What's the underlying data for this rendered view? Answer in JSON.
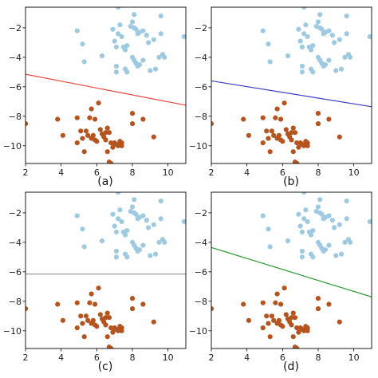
{
  "colors": {
    "cluster_top": "#9ecae1",
    "cluster_bottom": "#b5541e",
    "axis": "#000000"
  },
  "chart_data": [
    {
      "type": "scatter",
      "panel_label": "(a)",
      "xlim": [
        2,
        11
      ],
      "ylim": [
        -11.2,
        -0.6
      ],
      "xticks": [
        2,
        4,
        6,
        8,
        10
      ],
      "yticks": [
        -10,
        -8,
        -6,
        -4,
        -2
      ],
      "xtick_labels": [
        "2",
        "4",
        "6",
        "8",
        "10"
      ],
      "ytick_labels": [
        "−10",
        "−8",
        "−6",
        "−4",
        "−2"
      ],
      "boundary": {
        "x": [
          2,
          11
        ],
        "y": [
          -5.15,
          -7.25
        ],
        "color": "#e8473f"
      },
      "clusters": [
        "top",
        "bottom"
      ]
    },
    {
      "type": "scatter",
      "panel_label": "(b)",
      "xlim": [
        2,
        11
      ],
      "ylim": [
        -11.2,
        -0.6
      ],
      "xticks": [
        2,
        4,
        6,
        8,
        10
      ],
      "yticks": [
        -10,
        -8,
        -6,
        -4,
        -2
      ],
      "xtick_labels": [
        "2",
        "4",
        "6",
        "8",
        "10"
      ],
      "ytick_labels": [
        "−10",
        "−8",
        "−6",
        "−4",
        "−2"
      ],
      "boundary": {
        "x": [
          2,
          11
        ],
        "y": [
          -5.6,
          -7.35
        ],
        "color": "#3a3fc8"
      },
      "clusters": [
        "top",
        "bottom"
      ]
    },
    {
      "type": "scatter",
      "panel_label": "(c)",
      "xlim": [
        2,
        11
      ],
      "ylim": [
        -11.2,
        -0.6
      ],
      "xticks": [
        2,
        4,
        6,
        8,
        10
      ],
      "yticks": [
        -10,
        -8,
        -6,
        -4,
        -2
      ],
      "xtick_labels": [
        "2",
        "4",
        "6",
        "8",
        "10"
      ],
      "ytick_labels": [
        "−10",
        "−8",
        "−6",
        "−4",
        "−2"
      ],
      "boundary": {
        "x": [
          2,
          11
        ],
        "y": [
          -6.15,
          -6.15
        ],
        "color": "#9a9a9a"
      },
      "clusters": [
        "top",
        "bottom"
      ]
    },
    {
      "type": "scatter",
      "panel_label": "(d)",
      "xlim": [
        2,
        11
      ],
      "ylim": [
        -11.2,
        -0.6
      ],
      "xticks": [
        2,
        4,
        6,
        8,
        10
      ],
      "yticks": [
        -10,
        -8,
        -6,
        -4,
        -2
      ],
      "xtick_labels": [
        "2",
        "4",
        "6",
        "8",
        "10"
      ],
      "ytick_labels": [
        "−10",
        "−8",
        "−6",
        "−4",
        "−2"
      ],
      "boundary": {
        "x": [
          2,
          11
        ],
        "y": [
          -4.35,
          -7.7
        ],
        "color": "#2e9a2e"
      },
      "clusters": [
        "top",
        "bottom"
      ]
    }
  ],
  "clusters": {
    "top": [
      [
        4.9,
        -2.2
      ],
      [
        5.2,
        -3.1
      ],
      [
        5.3,
        -4.3
      ],
      [
        6.3,
        -3.9
      ],
      [
        6.9,
        -2.1
      ],
      [
        7.2,
        -0.6
      ],
      [
        7.3,
        -1.8
      ],
      [
        7.0,
        -2.9
      ],
      [
        7.1,
        -3.3
      ],
      [
        7.2,
        -2.4
      ],
      [
        7.4,
        -2.6
      ],
      [
        7.5,
        -3.3
      ],
      [
        7.6,
        -3.5
      ],
      [
        7.7,
        -3.2
      ],
      [
        7.9,
        -1.9
      ],
      [
        8.1,
        -2.0
      ],
      [
        8.2,
        -2.1
      ],
      [
        8.3,
        -2.4
      ],
      [
        8.4,
        -2.3
      ],
      [
        8.6,
        -2.2
      ],
      [
        8.8,
        -2.5
      ],
      [
        9.2,
        -2.8
      ],
      [
        8.9,
        -3.0
      ],
      [
        8.0,
        -4.0
      ],
      [
        8.1,
        -4.2
      ],
      [
        8.2,
        -4.4
      ],
      [
        8.3,
        -4.6
      ],
      [
        8.4,
        -4.5
      ],
      [
        8.6,
        -4.2
      ],
      [
        9.0,
        -4.9
      ],
      [
        9.3,
        -4.8
      ],
      [
        9.5,
        -4.0
      ],
      [
        9.7,
        -3.8
      ],
      [
        9.8,
        -4.0
      ],
      [
        9.6,
        -2.4
      ],
      [
        9.6,
        -1.2
      ],
      [
        8.1,
        -1.1
      ],
      [
        7.1,
        -4.6
      ],
      [
        7.1,
        -5.0
      ],
      [
        7.6,
        -4.8
      ],
      [
        7.7,
        -5.0
      ],
      [
        10.9,
        -2.6
      ],
      [
        8.0,
        -1.6
      ]
    ],
    "bottom": [
      [
        2.0,
        -8.5
      ],
      [
        3.8,
        -8.2
      ],
      [
        4.1,
        -9.3
      ],
      [
        4.9,
        -8.1
      ],
      [
        5.1,
        -9.0
      ],
      [
        5.2,
        -9.5
      ],
      [
        5.4,
        -9.0
      ],
      [
        5.5,
        -9.3
      ],
      [
        5.6,
        -8.1
      ],
      [
        5.7,
        -7.5
      ],
      [
        5.8,
        -9.3
      ],
      [
        5.9,
        -9.6
      ],
      [
        6.1,
        -7.1
      ],
      [
        6.2,
        -8.9
      ],
      [
        6.3,
        -9.2
      ],
      [
        6.4,
        -9.4
      ],
      [
        6.5,
        -9.6
      ],
      [
        6.6,
        -8.8
      ],
      [
        6.7,
        -9.1
      ],
      [
        6.8,
        -9.8
      ],
      [
        6.9,
        -10.1
      ],
      [
        7.0,
        -9.8
      ],
      [
        7.1,
        -9.9
      ],
      [
        7.2,
        -10.0
      ],
      [
        7.3,
        -9.7
      ],
      [
        7.4,
        -9.8
      ],
      [
        6.6,
        -10.4
      ],
      [
        6.7,
        -11.1
      ],
      [
        6.8,
        -11.2
      ],
      [
        5.3,
        -10.4
      ],
      [
        4.9,
        -9.8
      ],
      [
        8.0,
        -8.5
      ],
      [
        8.0,
        -7.8
      ],
      [
        8.6,
        -8.2
      ],
      [
        9.2,
        -9.4
      ],
      [
        6.0,
        -9.7
      ],
      [
        5.7,
        -9.5
      ],
      [
        5.9,
        -8.2
      ],
      [
        6.5,
        -9.1
      ],
      [
        7.4,
        -10.0
      ]
    ]
  }
}
